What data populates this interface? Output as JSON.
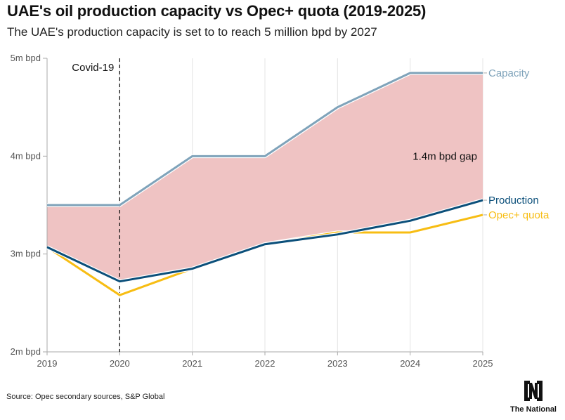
{
  "header": {
    "title": "UAE's oil production capacity vs Opec+ quota (2019-2025)",
    "subtitle": "The UAE's production capacity is set to to reach 5 million bpd by 2027"
  },
  "footer": {
    "source": "Source: Opec secondary sources, S&P Global",
    "logo_text": "The National",
    "logo_mark": "N"
  },
  "colors": {
    "capacity": "#7fa3ba",
    "production": "#0b4f7a",
    "opec_quota": "#f7bd13",
    "gap_fill": "#efc3c3",
    "axis": "#aaaaaa",
    "grid": "#e4e4e4"
  },
  "chart_data": {
    "type": "line",
    "title": "UAE's oil production capacity vs Opec+ quota (2019-2025)",
    "subtitle": "The UAE's production capacity is set to to reach 5 million bpd by 2027",
    "xlabel": "",
    "ylabel": "",
    "x": [
      "2019",
      "2020",
      "2021",
      "2022",
      "2023",
      "2024",
      "2025"
    ],
    "ylim": [
      2,
      5
    ],
    "yticks": [
      {
        "value": 5,
        "label": "5m bpd"
      },
      {
        "value": 4,
        "label": "4m bpd"
      },
      {
        "value": 3,
        "label": "3m bpd"
      },
      {
        "value": 2,
        "label": "2m bpd"
      }
    ],
    "grid": "vertical",
    "series": [
      {
        "name": "Capacity",
        "key": "capacity",
        "values": [
          3.5,
          3.5,
          4.0,
          4.0,
          4.5,
          4.85,
          4.85
        ]
      },
      {
        "name": "Production",
        "key": "production",
        "values": [
          3.07,
          2.72,
          2.85,
          3.1,
          3.2,
          3.34,
          3.55
        ]
      },
      {
        "name": "Opec+ quota",
        "key": "opec_quota",
        "values": [
          3.07,
          2.58,
          2.85,
          3.1,
          3.22,
          3.22,
          3.4
        ]
      }
    ],
    "shaded_area": {
      "between": [
        "capacity",
        "production"
      ],
      "label": "1.4m bpd gap"
    },
    "annotations": [
      {
        "type": "vline",
        "x": "2020",
        "label": "Covid-19",
        "style": "dashed"
      },
      {
        "type": "text",
        "x": "2024",
        "y": 4.0,
        "label": "1.4m bpd gap"
      }
    ],
    "legend": "inline-right"
  }
}
